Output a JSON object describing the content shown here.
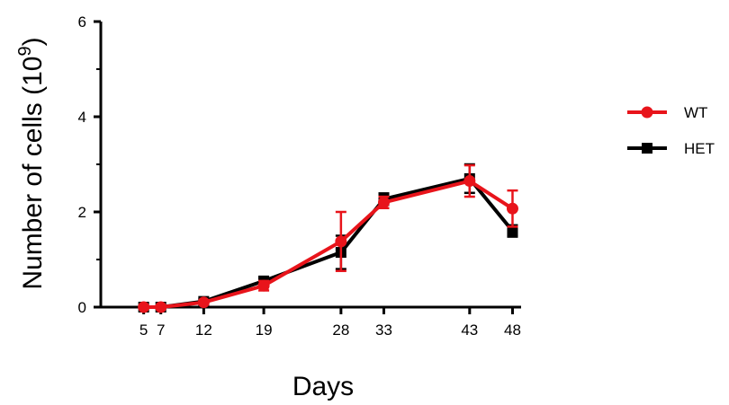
{
  "chart_data": {
    "type": "line",
    "xlabel": "Days",
    "ylabel": "Number of cells (10",
    "ylabel_superscript": "9",
    "ylabel_close": ")",
    "x": [
      5,
      7,
      12,
      19,
      28,
      33,
      43,
      48
    ],
    "x_tick_labels": [
      "5",
      "7",
      "12",
      "19",
      "28",
      "33",
      "43",
      "48"
    ],
    "y_ticks": [
      0,
      2,
      4,
      6
    ],
    "y_tick_labels": [
      "0",
      "2",
      "4",
      "6"
    ],
    "xlim": [
      0,
      49
    ],
    "ylim": [
      0,
      6
    ],
    "grid": false,
    "legend_position": "right",
    "series": [
      {
        "name": "HET",
        "color": "#000000",
        "marker": "square",
        "values": [
          0.0,
          0.0,
          0.12,
          0.55,
          1.15,
          2.27,
          2.7,
          1.6
        ],
        "errors": [
          0.02,
          0.02,
          0.04,
          0.06,
          0.35,
          0.12,
          0.3,
          0.12
        ]
      },
      {
        "name": "WT",
        "color": "#e8141b",
        "marker": "circle",
        "values": [
          0.0,
          0.0,
          0.1,
          0.45,
          1.38,
          2.2,
          2.65,
          2.07
        ],
        "errors": [
          0.02,
          0.02,
          0.04,
          0.1,
          0.62,
          0.12,
          0.33,
          0.38
        ]
      }
    ],
    "legend_order": [
      "WT",
      "HET"
    ]
  }
}
